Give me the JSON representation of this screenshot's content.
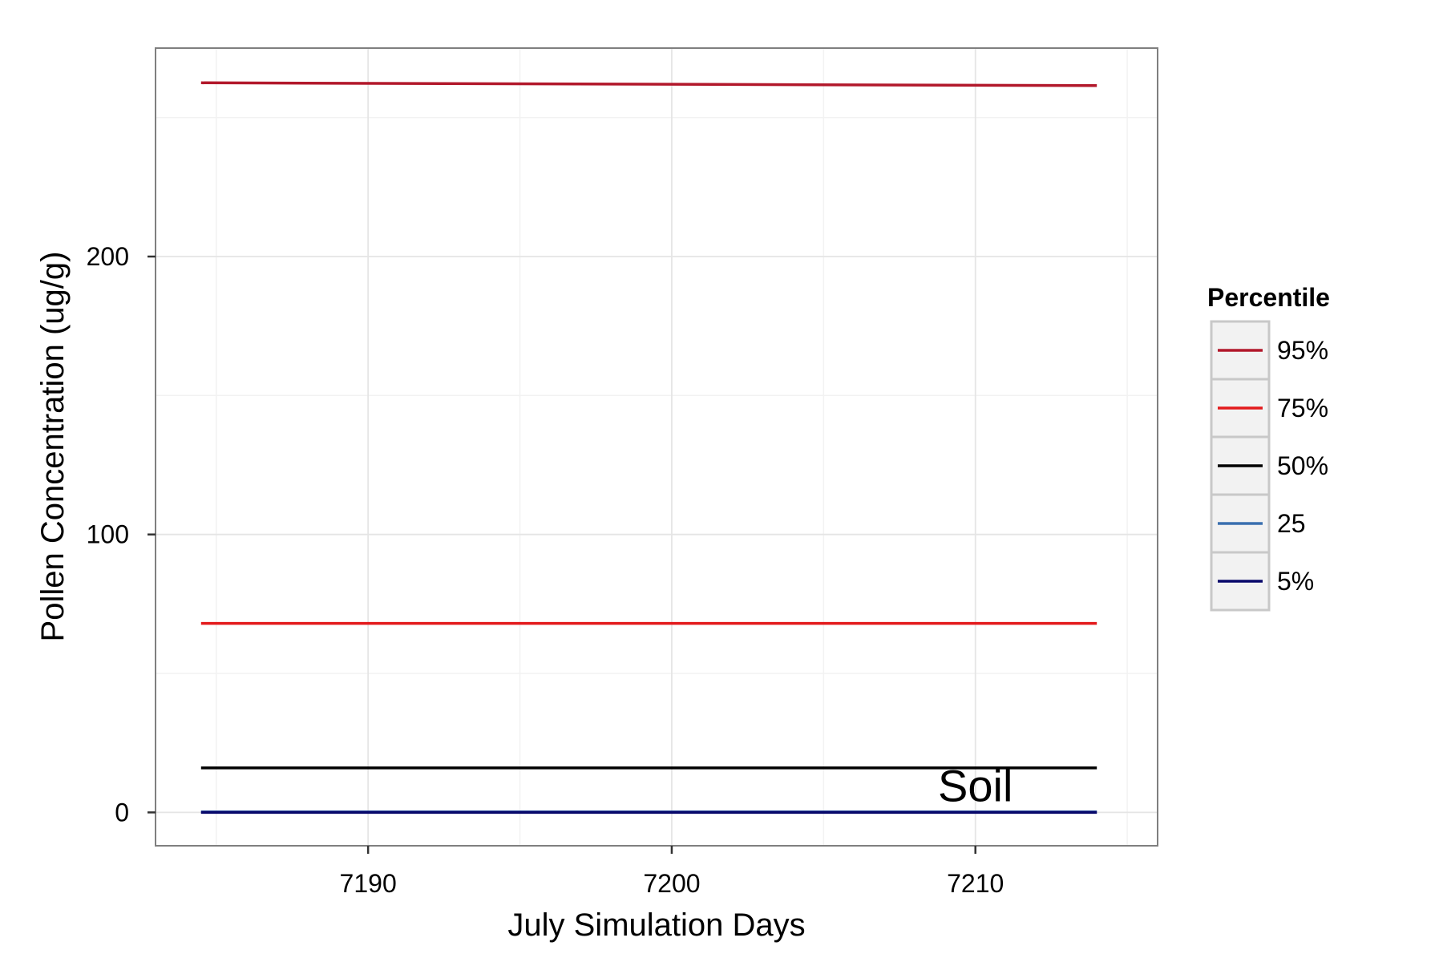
{
  "chart_data": {
    "type": "line",
    "title": "",
    "xlabel": "July Simulation Days",
    "ylabel": "Pollen Concentration (ug/g)",
    "xlim": [
      7183,
      7216
    ],
    "ylim": [
      -12,
      275
    ],
    "x_ticks": [
      7190,
      7200,
      7210
    ],
    "y_ticks": [
      0,
      100,
      200
    ],
    "grid": true,
    "annotation": {
      "text": "Soil",
      "x": 7210,
      "y": 4
    },
    "legend": {
      "title": "Percentile",
      "position": "right",
      "entries": [
        "95%",
        "75%",
        "50%",
        "25",
        "5%"
      ]
    },
    "series": [
      {
        "name": "95%",
        "color": "#b2182b",
        "x": [
          7184.5,
          7214
        ],
        "y": [
          262.5,
          261.5
        ]
      },
      {
        "name": "75%",
        "color": "#e31a1c",
        "x": [
          7184.5,
          7214
        ],
        "y": [
          68,
          68
        ]
      },
      {
        "name": "50%",
        "color": "#000000",
        "x": [
          7184.5,
          7214
        ],
        "y": [
          16,
          16
        ]
      },
      {
        "name": "25",
        "color": "#3a6faf",
        "x": [
          7184.5,
          7214
        ],
        "y": [
          0.2,
          0.2
        ]
      },
      {
        "name": "5%",
        "color": "#08086b",
        "x": [
          7184.5,
          7214
        ],
        "y": [
          0,
          0
        ]
      }
    ]
  }
}
